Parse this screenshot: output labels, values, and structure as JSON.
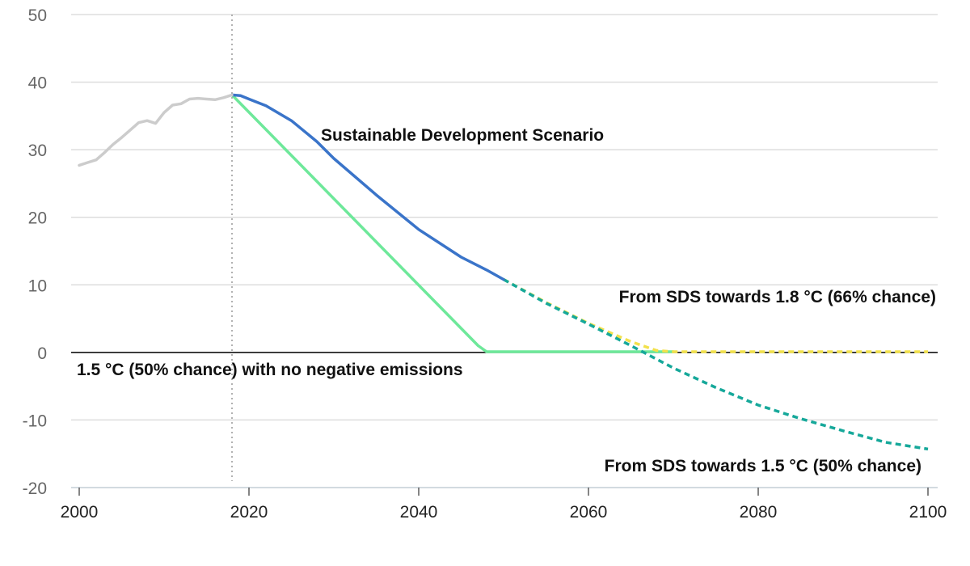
{
  "chart_data": {
    "type": "line",
    "title": "",
    "xlabel": "",
    "ylabel": "",
    "xlim": [
      1999,
      2101
    ],
    "ylim": [
      -20,
      50
    ],
    "xticks": [
      2000,
      2020,
      2040,
      2060,
      2080,
      2100
    ],
    "yticks": [
      -20,
      -10,
      0,
      10,
      20,
      30,
      40,
      50
    ],
    "grid": true,
    "legend": "none",
    "marker_year": 2018,
    "colors": {
      "historical": "#cccccc",
      "sds": "#3a74c9",
      "sds_1_8": "#f2e14b",
      "sds_1_5": "#16a89a",
      "no_negative": "#6ee89a",
      "grid": "#dddddd",
      "zero_line": "#000000",
      "marker_line": "#999999"
    },
    "series": [
      {
        "key": "historical",
        "style": "solid",
        "points": [
          [
            2000,
            27.7
          ],
          [
            2001,
            28.1
          ],
          [
            2002,
            28.5
          ],
          [
            2003,
            29.6
          ],
          [
            2004,
            30.8
          ],
          [
            2005,
            31.8
          ],
          [
            2006,
            32.9
          ],
          [
            2007,
            34.0
          ],
          [
            2008,
            34.3
          ],
          [
            2009,
            33.9
          ],
          [
            2010,
            35.5
          ],
          [
            2011,
            36.6
          ],
          [
            2012,
            36.8
          ],
          [
            2013,
            37.5
          ],
          [
            2014,
            37.6
          ],
          [
            2015,
            37.5
          ],
          [
            2016,
            37.4
          ],
          [
            2017,
            37.7
          ],
          [
            2018,
            38.1
          ]
        ]
      },
      {
        "key": "sds",
        "style": "solid",
        "points": [
          [
            2018,
            38.1
          ],
          [
            2019,
            38.0
          ],
          [
            2020,
            37.5
          ],
          [
            2022,
            36.5
          ],
          [
            2025,
            34.3
          ],
          [
            2028,
            31.2
          ],
          [
            2030,
            28.7
          ],
          [
            2035,
            23.3
          ],
          [
            2040,
            18.2
          ],
          [
            2045,
            14.1
          ],
          [
            2048,
            12.2
          ],
          [
            2050,
            10.8
          ]
        ]
      },
      {
        "key": "sds_1_8",
        "style": "dashed",
        "points": [
          [
            2050,
            10.8
          ],
          [
            2055,
            7.4
          ],
          [
            2060,
            4.3
          ],
          [
            2065,
            1.6
          ],
          [
            2068,
            0.3
          ],
          [
            2070,
            0.1
          ],
          [
            2080,
            0.1
          ],
          [
            2090,
            0.1
          ],
          [
            2100,
            0.1
          ]
        ]
      },
      {
        "key": "sds_1_5",
        "style": "dashed",
        "points": [
          [
            2050,
            10.8
          ],
          [
            2055,
            7.3
          ],
          [
            2060,
            4.2
          ],
          [
            2065,
            1.0
          ],
          [
            2070,
            -2.3
          ],
          [
            2075,
            -5.2
          ],
          [
            2080,
            -7.8
          ],
          [
            2085,
            -9.8
          ],
          [
            2090,
            -11.6
          ],
          [
            2095,
            -13.3
          ],
          [
            2100,
            -14.3
          ]
        ]
      },
      {
        "key": "no_negative",
        "style": "solid",
        "points": [
          [
            2018,
            38.1
          ],
          [
            2047,
            1.0
          ],
          [
            2048,
            0.1
          ],
          [
            2060,
            0.1
          ],
          [
            2070,
            0.1
          ]
        ]
      }
    ],
    "annotations": [
      {
        "key": "sds",
        "text": "Sustainable Development Scenario"
      },
      {
        "key": "sds_1_8",
        "text": "From SDS towards 1.8 °C (66% chance)"
      },
      {
        "key": "no_negative",
        "text": "1.5 °C (50% chance) with no negative emissions"
      },
      {
        "key": "sds_1_5",
        "text": "From SDS towards 1.5 °C (50% chance)"
      }
    ]
  }
}
